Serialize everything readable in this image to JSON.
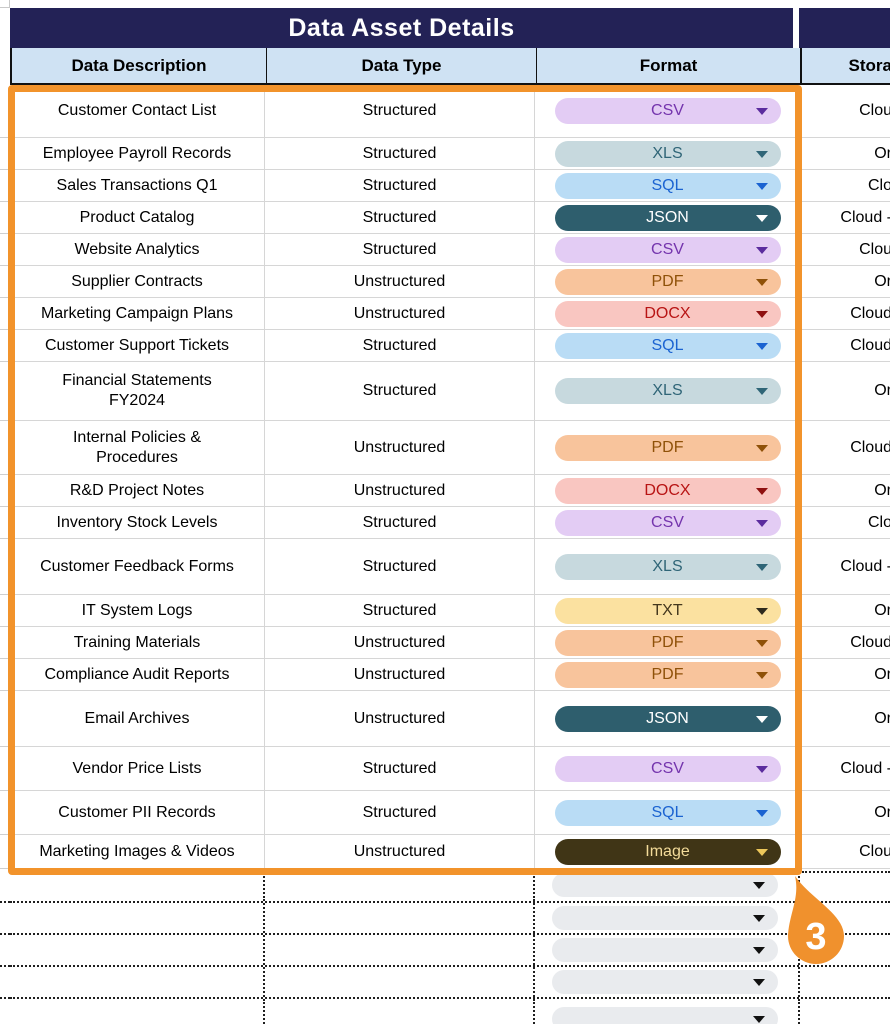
{
  "title": "Data Asset Details",
  "adjacent_section": {
    "header_fragment": "Stora"
  },
  "columns": [
    "Data Description",
    "Data Type",
    "Format"
  ],
  "table": {
    "rows": [
      {
        "description": "Customer Contact List",
        "type": "Structured",
        "format": "CSV",
        "format_style": "csv",
        "storage_fragment": "Clou"
      },
      {
        "description": "Employee Payroll Records",
        "type": "Structured",
        "format": "XLS",
        "format_style": "xls",
        "storage_fragment": "Or"
      },
      {
        "description": "Sales Transactions Q1",
        "type": "Structured",
        "format": "SQL",
        "format_style": "sql",
        "storage_fragment": "Clo"
      },
      {
        "description": "Product Catalog",
        "type": "Structured",
        "format": "JSON",
        "format_style": "json",
        "storage_fragment": "Cloud -"
      },
      {
        "description": "Website Analytics",
        "type": "Structured",
        "format": "CSV",
        "format_style": "csv",
        "storage_fragment": "Clou"
      },
      {
        "description": "Supplier Contracts",
        "type": "Unstructured",
        "format": "PDF",
        "format_style": "pdf",
        "storage_fragment": "Or"
      },
      {
        "description": "Marketing Campaign Plans",
        "type": "Unstructured",
        "format": "DOCX",
        "format_style": "docx",
        "storage_fragment": "Cloud"
      },
      {
        "description": "Customer Support Tickets",
        "type": "Structured",
        "format": "SQL",
        "format_style": "sql",
        "storage_fragment": "Cloud"
      },
      {
        "description": "Financial Statements\nFY2024",
        "type": "Structured",
        "format": "XLS",
        "format_style": "xls",
        "storage_fragment": "Or"
      },
      {
        "description": "Internal Policies &\nProcedures",
        "type": "Unstructured",
        "format": "PDF",
        "format_style": "pdf",
        "storage_fragment": "Cloud"
      },
      {
        "description": "R&D Project Notes",
        "type": "Unstructured",
        "format": "DOCX",
        "format_style": "docx",
        "storage_fragment": "Or"
      },
      {
        "description": "Inventory Stock Levels",
        "type": "Structured",
        "format": "CSV",
        "format_style": "csv",
        "storage_fragment": "Clo"
      },
      {
        "description": "Customer Feedback Forms",
        "type": "Structured",
        "format": "XLS",
        "format_style": "xls",
        "storage_fragment": "Cloud -"
      },
      {
        "description": "IT System Logs",
        "type": "Structured",
        "format": "TXT",
        "format_style": "txt",
        "storage_fragment": "Or"
      },
      {
        "description": "Training Materials",
        "type": "Unstructured",
        "format": "PDF",
        "format_style": "pdf",
        "storage_fragment": "Cloud"
      },
      {
        "description": "Compliance Audit Reports",
        "type": "Unstructured",
        "format": "PDF",
        "format_style": "pdf",
        "storage_fragment": "Or"
      },
      {
        "description": "Email Archives",
        "type": "Unstructured",
        "format": "JSON",
        "format_style": "json",
        "storage_fragment": "Or"
      },
      {
        "description": "Vendor Price Lists",
        "type": "Structured",
        "format": "CSV",
        "format_style": "csv",
        "storage_fragment": "Cloud -"
      },
      {
        "description": "Customer PII Records",
        "type": "Structured",
        "format": "SQL",
        "format_style": "sql",
        "storage_fragment": "Or"
      },
      {
        "description": "Marketing Images & Videos",
        "type": "Unstructured",
        "format": "Image",
        "format_style": "image",
        "storage_fragment": "Clou"
      }
    ]
  },
  "empty_rows": {
    "count": 5
  },
  "callout": {
    "label": "3"
  },
  "format_styles": {
    "csv": {
      "bg": "#e3ccf4",
      "fg": "#7434ad",
      "arrow": "#5b2c9e"
    },
    "xls": {
      "bg": "#c7d9de",
      "fg": "#2f6577",
      "arrow": "#2f6577"
    },
    "sql": {
      "bg": "#b9dcf5",
      "fg": "#1b63d1",
      "arrow": "#1b63d1"
    },
    "json": {
      "bg": "#2e5e6d",
      "fg": "#ffffff",
      "arrow": "#ffffff"
    },
    "pdf": {
      "bg": "#f8c49c",
      "fg": "#8f5108",
      "arrow": "#8f5108"
    },
    "docx": {
      "bg": "#f9c6c1",
      "fg": "#b81414",
      "arrow": "#8f1010"
    },
    "txt": {
      "bg": "#fbe1a0",
      "fg": "#44371d",
      "arrow": "#2e2a1e"
    },
    "image": {
      "bg": "#403516",
      "fg": "#f4dc9a",
      "arrow": "#edc75a"
    },
    "empty": {
      "bg": "#e9ebee",
      "fg": "#111111",
      "arrow": "#111111"
    }
  },
  "colors": {
    "accent_orange": "#f2932b",
    "navy": "#232256",
    "header_blue": "#cfe2f3"
  }
}
